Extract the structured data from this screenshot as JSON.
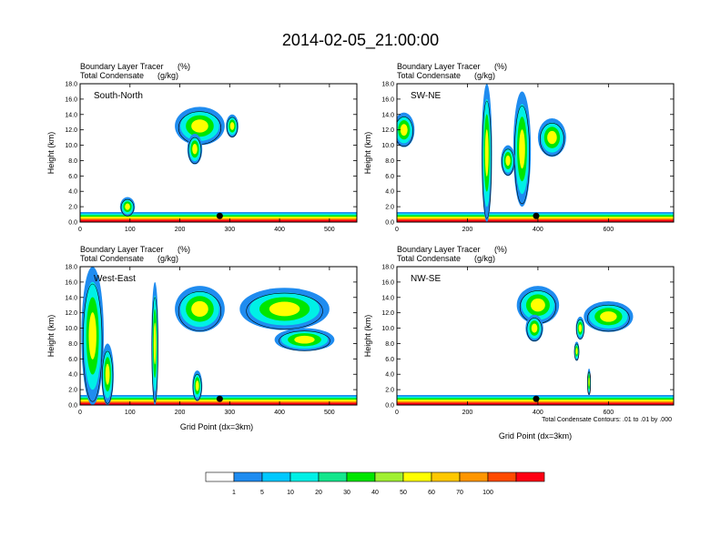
{
  "title": "2014-02-05_21:00:00",
  "colorbar": {
    "levels": [
      "1",
      "5",
      "10",
      "20",
      "30",
      "40",
      "50",
      "60",
      "70",
      "100"
    ],
    "colors": [
      "#ffffff",
      "#1f8cf0",
      "#00c8ff",
      "#00f0e6",
      "#14e68c",
      "#00e600",
      "#a0f032",
      "#ffff00",
      "#ffc800",
      "#ff9600",
      "#ff4b00",
      "#ff0014"
    ]
  },
  "xlabel": "Grid Point (dx=3km)",
  "footnote": "Total Condensate Contours: .01 to .01 by .000",
  "chart_data": [
    {
      "type": "heatmap",
      "panel": "South-North",
      "subtitle_left_1": "Boundary Layer Tracer",
      "subtitle_unit_1": "(%)",
      "subtitle_left_2": "Total Condensate",
      "subtitle_unit_2": "(g/kg)",
      "ylabel": "Height (km)",
      "ylim": [
        0,
        18
      ],
      "yticks": [
        "0.0",
        "2.0",
        "4.0",
        "6.0",
        "8.0",
        "10.0",
        "12.0",
        "14.0",
        "16.0",
        "18.0"
      ],
      "xlim": [
        0,
        555
      ],
      "xticks": [
        0,
        100,
        200,
        300,
        400,
        500
      ],
      "xtick_labels": [
        "0",
        "100",
        "200",
        "300",
        "400",
        "500"
      ],
      "marker_x": 280,
      "blobs": [
        {
          "x": 240,
          "y": 12.5,
          "w": 100,
          "h": 5.0
        },
        {
          "x": 230,
          "y": 9.5,
          "w": 30,
          "h": 4.0
        },
        {
          "x": 305,
          "y": 12.5,
          "w": 25,
          "h": 3.0
        },
        {
          "x": 95,
          "y": 2.0,
          "w": 30,
          "h": 2.5
        }
      ]
    },
    {
      "type": "heatmap",
      "panel": "SW-NE",
      "subtitle_left_1": "Boundary Layer Tracer",
      "subtitle_unit_1": "(%)",
      "subtitle_left_2": "Total Condensate",
      "subtitle_unit_2": "(g/kg)",
      "ylabel": "Height (km)",
      "ylim": [
        0,
        18
      ],
      "yticks": [
        "0.0",
        "2.0",
        "4.0",
        "6.0",
        "8.0",
        "10.0",
        "12.0",
        "14.0",
        "16.0",
        "18.0"
      ],
      "xlim": [
        0,
        785
      ],
      "xticks": [
        0,
        200,
        400,
        600
      ],
      "xtick_labels": [
        "0",
        "200",
        "400",
        "600"
      ],
      "marker_x": 395,
      "blobs": [
        {
          "x": 255,
          "y": 9.0,
          "w": 30,
          "h": 18.0
        },
        {
          "x": 355,
          "y": 9.5,
          "w": 50,
          "h": 15.0
        },
        {
          "x": 20,
          "y": 12.0,
          "w": 60,
          "h": 4.5
        },
        {
          "x": 315,
          "y": 8.0,
          "w": 40,
          "h": 4.0
        },
        {
          "x": 440,
          "y": 11.0,
          "w": 80,
          "h": 5.0
        }
      ]
    },
    {
      "type": "heatmap",
      "panel": "West-East",
      "subtitle_left_1": "Boundary Layer Tracer",
      "subtitle_unit_1": "(%)",
      "subtitle_left_2": "Total Condensate",
      "subtitle_unit_2": "(g/kg)",
      "ylabel": "Height (km)",
      "ylim": [
        0,
        18
      ],
      "yticks": [
        "0.0",
        "2.0",
        "4.0",
        "6.0",
        "8.0",
        "10.0",
        "12.0",
        "14.0",
        "16.0",
        "18.0"
      ],
      "xlim": [
        0,
        555
      ],
      "xticks": [
        0,
        100,
        200,
        300,
        400,
        500
      ],
      "xtick_labels": [
        "0",
        "100",
        "200",
        "300",
        "400",
        "500"
      ],
      "marker_x": 280,
      "blobs": [
        {
          "x": 25,
          "y": 9.0,
          "w": 45,
          "h": 18.0
        },
        {
          "x": 55,
          "y": 4.0,
          "w": 25,
          "h": 8.0
        },
        {
          "x": 150,
          "y": 8.0,
          "w": 14,
          "h": 16.0
        },
        {
          "x": 240,
          "y": 12.5,
          "w": 100,
          "h": 6.0
        },
        {
          "x": 410,
          "y": 12.5,
          "w": 180,
          "h": 5.5
        },
        {
          "x": 450,
          "y": 8.5,
          "w": 120,
          "h": 3.0
        },
        {
          "x": 235,
          "y": 2.5,
          "w": 20,
          "h": 4.0
        }
      ]
    },
    {
      "type": "heatmap",
      "panel": "NW-SE",
      "subtitle_left_1": "Boundary Layer Tracer",
      "subtitle_unit_1": "(%)",
      "subtitle_left_2": "Total Condensate",
      "subtitle_unit_2": "(g/kg)",
      "ylabel": "Height (km)",
      "ylim": [
        0,
        18
      ],
      "yticks": [
        "0.0",
        "2.0",
        "4.0",
        "6.0",
        "8.0",
        "10.0",
        "12.0",
        "14.0",
        "16.0",
        "18.0"
      ],
      "xlim": [
        0,
        785
      ],
      "xticks": [
        0,
        200,
        400,
        600
      ],
      "xtick_labels": [
        "0",
        "200",
        "400",
        "600"
      ],
      "marker_x": 395,
      "blobs": [
        {
          "x": 400,
          "y": 13.0,
          "w": 120,
          "h": 5.0
        },
        {
          "x": 600,
          "y": 11.5,
          "w": 140,
          "h": 4.0
        },
        {
          "x": 390,
          "y": 10.0,
          "w": 50,
          "h": 3.5
        },
        {
          "x": 520,
          "y": 10.0,
          "w": 25,
          "h": 3.0
        },
        {
          "x": 510,
          "y": 7.0,
          "w": 15,
          "h": 2.5
        },
        {
          "x": 545,
          "y": 3.0,
          "w": 10,
          "h": 3.5
        }
      ]
    }
  ]
}
